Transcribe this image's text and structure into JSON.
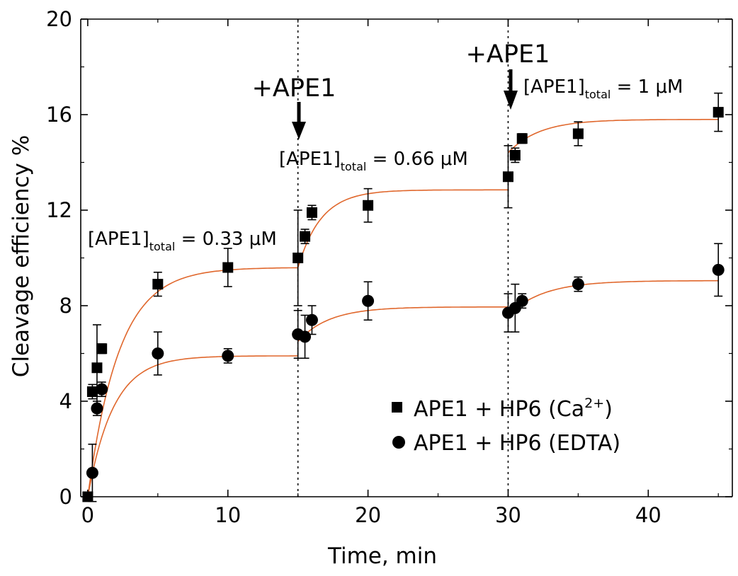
{
  "chart_data": {
    "type": "scatter",
    "xlabel": "Time, min",
    "ylabel": "Cleavage efficiency %",
    "xlim": [
      -0.5,
      46
    ],
    "ylim": [
      0,
      20
    ],
    "x_ticks": [
      0,
      10,
      20,
      30,
      40
    ],
    "y_ticks": [
      0,
      4,
      8,
      12,
      16,
      20
    ],
    "x_tick_labels": [
      "0",
      "10",
      "20",
      "30",
      "40"
    ],
    "y_tick_labels": [
      "0",
      "4",
      "8",
      "12",
      "16",
      "20"
    ],
    "vertical_lines": [
      15,
      30
    ],
    "series": [
      {
        "name": "APE1 + HP6 (Ca2+)",
        "marker": "square",
        "points": [
          {
            "x": 0,
            "y": 0,
            "err": 0
          },
          {
            "x": 0.33,
            "y": 4.4,
            "err": 0.3
          },
          {
            "x": 0.66,
            "y": 5.4,
            "err": 1.8
          },
          {
            "x": 1,
            "y": 6.2,
            "err": 0.2
          },
          {
            "x": 5,
            "y": 8.9,
            "err": 0.5
          },
          {
            "x": 10,
            "y": 9.6,
            "err": 0.8
          },
          {
            "x": 15,
            "y": 10.0,
            "err": 2.0
          },
          {
            "x": 15.5,
            "y": 10.9,
            "err": 0.3
          },
          {
            "x": 16,
            "y": 11.9,
            "err": 0.3
          },
          {
            "x": 20,
            "y": 12.2,
            "err": 0.7
          },
          {
            "x": 30,
            "y": 13.4,
            "err": 1.3
          },
          {
            "x": 30.5,
            "y": 14.3,
            "err": 0.3
          },
          {
            "x": 31,
            "y": 15.0,
            "err": 0.2
          },
          {
            "x": 35,
            "y": 15.2,
            "err": 0.5
          },
          {
            "x": 45,
            "y": 16.1,
            "err": 0.8
          }
        ]
      },
      {
        "name": "APE1 + HP6 (EDTA)",
        "marker": "circle",
        "points": [
          {
            "x": 0.33,
            "y": 1.0,
            "err": 1.2
          },
          {
            "x": 0.66,
            "y": 3.7,
            "err": 0.3
          },
          {
            "x": 1,
            "y": 4.5,
            "err": 0.3
          },
          {
            "x": 5,
            "y": 6.0,
            "err": 0.9
          },
          {
            "x": 10,
            "y": 5.9,
            "err": 0.3
          },
          {
            "x": 15,
            "y": 6.8,
            "err": 1.0
          },
          {
            "x": 15.5,
            "y": 6.7,
            "err": 0.9
          },
          {
            "x": 16,
            "y": 7.4,
            "err": 0.6
          },
          {
            "x": 20,
            "y": 8.2,
            "err": 0.8
          },
          {
            "x": 30,
            "y": 7.7,
            "err": 0.8
          },
          {
            "x": 30.5,
            "y": 7.9,
            "err": 1.0
          },
          {
            "x": 31,
            "y": 8.2,
            "err": 0.3
          },
          {
            "x": 35,
            "y": 8.9,
            "err": 0.3
          },
          {
            "x": 45,
            "y": 9.5,
            "err": 1.1
          }
        ]
      }
    ],
    "fits": [
      {
        "series": "APE1 + HP6 (Ca2+)",
        "color": "#e0672c",
        "segments": [
          {
            "x0": 0,
            "x1": 15,
            "y0": 0,
            "plateau": 9.6,
            "k": 0.45
          },
          {
            "x0": 15,
            "x1": 30,
            "y0": 9.6,
            "plateau": 12.85,
            "k": 0.6
          },
          {
            "x0": 30,
            "x1": 45,
            "y0": 14.4,
            "plateau": 15.8,
            "k": 0.45
          }
        ]
      },
      {
        "series": "APE1 + HP6 (EDTA)",
        "color": "#e0672c",
        "segments": [
          {
            "x0": 0,
            "x1": 15,
            "y0": 0,
            "plateau": 5.9,
            "k": 0.55
          },
          {
            "x0": 15,
            "x1": 30,
            "y0": 6.5,
            "plateau": 7.95,
            "k": 0.45
          },
          {
            "x0": 30,
            "x1": 45,
            "y0": 7.6,
            "plateau": 9.05,
            "k": 0.4
          }
        ]
      }
    ],
    "annotations": {
      "add_label_1": "+APE1",
      "add_label_2": "+APE1",
      "conc_1": {
        "prefix": "[APE1]",
        "sub": "total",
        "suffix": " = 0.33 μM"
      },
      "conc_2": {
        "prefix": "[APE1]",
        "sub": "total",
        "suffix": " = 0.66 μM"
      },
      "conc_3": {
        "prefix": "[APE1]",
        "sub": "total",
        "suffix": " = 1 μM"
      }
    },
    "legend": {
      "position": "lower-right",
      "ca_main": "APE1 + HP6 (Ca",
      "ca_sup": "2+",
      "ca_close": ")",
      "edta": "APE1 + HP6 (EDTA)"
    }
  }
}
